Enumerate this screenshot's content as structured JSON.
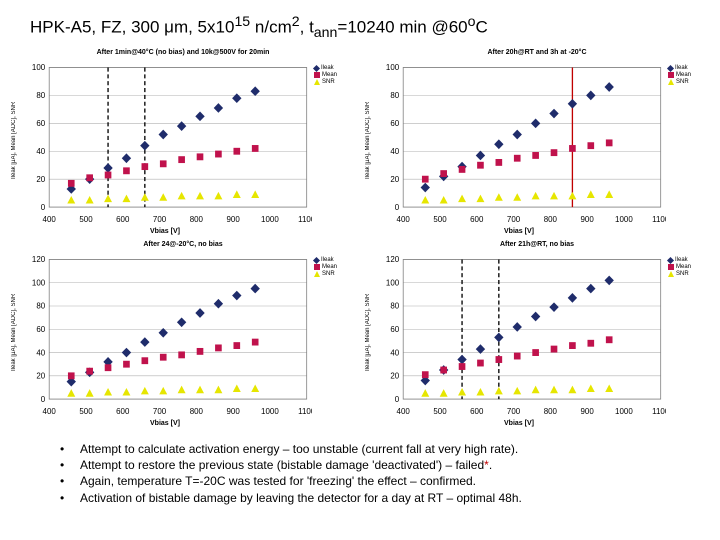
{
  "title_parts": {
    "p1": "HPK-A5, FZ, 300 μm, 5x10",
    "sup1": "15",
    "p2": " n/cm",
    "sup2": "2",
    "p3": ", t",
    "sub1": "ann",
    "p4": "=10240 min @60",
    "sup3": "o",
    "p5": "C"
  },
  "charts": [
    {
      "title": "After 1min@40°C (no bias) and 10k@500V for 20min",
      "xlabel": "Vbias [V]",
      "ylabel": "Ileak [μA], Mean [ADC], SNR",
      "xlim": [
        400,
        1100
      ],
      "xtick_step": 100,
      "ylim": [
        0,
        100
      ],
      "ytick_step": 20,
      "series": [
        {
          "name": "Ileak",
          "color": "#1f2c6b",
          "shape": "diamond",
          "pts": [
            [
              460,
              13
            ],
            [
              510,
              20
            ],
            [
              560,
              28
            ],
            [
              610,
              35
            ],
            [
              660,
              44
            ],
            [
              710,
              52
            ],
            [
              760,
              58
            ],
            [
              810,
              65
            ],
            [
              860,
              71
            ],
            [
              910,
              78
            ],
            [
              960,
              83
            ]
          ]
        },
        {
          "name": "Mean",
          "color": "#c0124c",
          "shape": "square",
          "pts": [
            [
              460,
              17
            ],
            [
              510,
              21
            ],
            [
              560,
              23
            ],
            [
              610,
              26
            ],
            [
              660,
              29
            ],
            [
              710,
              31
            ],
            [
              760,
              34
            ],
            [
              810,
              36
            ],
            [
              860,
              38
            ],
            [
              910,
              40
            ],
            [
              960,
              42
            ]
          ]
        },
        {
          "name": "SNR",
          "color": "#e6e600",
          "shape": "triangle",
          "pts": [
            [
              460,
              5
            ],
            [
              510,
              5
            ],
            [
              560,
              6
            ],
            [
              610,
              6
            ],
            [
              660,
              7
            ],
            [
              710,
              7
            ],
            [
              760,
              8
            ],
            [
              810,
              8
            ],
            [
              860,
              8
            ],
            [
              910,
              9
            ],
            [
              960,
              9
            ]
          ]
        }
      ],
      "vlines": [
        {
          "x": 560,
          "color": "#000"
        },
        {
          "x": 660,
          "color": "#000"
        }
      ]
    },
    {
      "title": "After 20h@RT and 3h at -20°C",
      "xlabel": "Vbias [V]",
      "ylabel": "Ileak [μA], Mean [ADC], SNR",
      "xlim": [
        400,
        1100
      ],
      "xtick_step": 100,
      "ylim": [
        0,
        100
      ],
      "ytick_step": 20,
      "series": [
        {
          "name": "Ileak",
          "color": "#1f2c6b",
          "shape": "diamond",
          "pts": [
            [
              460,
              14
            ],
            [
              510,
              22
            ],
            [
              560,
              29
            ],
            [
              610,
              37
            ],
            [
              660,
              45
            ],
            [
              710,
              52
            ],
            [
              760,
              60
            ],
            [
              810,
              67
            ],
            [
              860,
              74
            ],
            [
              910,
              80
            ],
            [
              960,
              86
            ]
          ]
        },
        {
          "name": "Mean",
          "color": "#c0124c",
          "shape": "square",
          "pts": [
            [
              460,
              20
            ],
            [
              510,
              24
            ],
            [
              560,
              27
            ],
            [
              610,
              30
            ],
            [
              660,
              32
            ],
            [
              710,
              35
            ],
            [
              760,
              37
            ],
            [
              810,
              39
            ],
            [
              860,
              42
            ],
            [
              910,
              44
            ],
            [
              960,
              46
            ]
          ]
        },
        {
          "name": "SNR",
          "color": "#e6e600",
          "shape": "triangle",
          "pts": [
            [
              460,
              5
            ],
            [
              510,
              5
            ],
            [
              560,
              6
            ],
            [
              610,
              6
            ],
            [
              660,
              7
            ],
            [
              710,
              7
            ],
            [
              760,
              8
            ],
            [
              810,
              8
            ],
            [
              860,
              8
            ],
            [
              910,
              9
            ],
            [
              960,
              9
            ]
          ]
        }
      ],
      "vlines": [
        {
          "x": 860,
          "color": "#c00000"
        }
      ]
    },
    {
      "title": "After 24@-20°C, no bias",
      "xlabel": "Vbias [V]",
      "ylabel": "Ileak [μA], Mean [ADC], SNR",
      "xlim": [
        400,
        1100
      ],
      "xtick_step": 100,
      "ylim": [
        0,
        120
      ],
      "ytick_step": 20,
      "series": [
        {
          "name": "Ileak",
          "color": "#1f2c6b",
          "shape": "diamond",
          "pts": [
            [
              460,
              15
            ],
            [
              510,
              23
            ],
            [
              560,
              32
            ],
            [
              610,
              40
            ],
            [
              660,
              49
            ],
            [
              710,
              57
            ],
            [
              760,
              66
            ],
            [
              810,
              74
            ],
            [
              860,
              82
            ],
            [
              910,
              89
            ],
            [
              960,
              95
            ]
          ]
        },
        {
          "name": "Mean",
          "color": "#c0124c",
          "shape": "square",
          "pts": [
            [
              460,
              20
            ],
            [
              510,
              24
            ],
            [
              560,
              27
            ],
            [
              610,
              30
            ],
            [
              660,
              33
            ],
            [
              710,
              36
            ],
            [
              760,
              38
            ],
            [
              810,
              41
            ],
            [
              860,
              44
            ],
            [
              910,
              46
            ],
            [
              960,
              49
            ]
          ]
        },
        {
          "name": "SNR",
          "color": "#e6e600",
          "shape": "triangle",
          "pts": [
            [
              460,
              5
            ],
            [
              510,
              5
            ],
            [
              560,
              6
            ],
            [
              610,
              6
            ],
            [
              660,
              7
            ],
            [
              710,
              7
            ],
            [
              760,
              8
            ],
            [
              810,
              8
            ],
            [
              860,
              8
            ],
            [
              910,
              9
            ],
            [
              960,
              9
            ]
          ]
        }
      ],
      "vlines": []
    },
    {
      "title": "After 21h@RT, no bias",
      "xlabel": "Vbias [V]",
      "ylabel": "Ileak [μA], Mean [ADC], SNR",
      "xlim": [
        400,
        1100
      ],
      "xtick_step": 100,
      "ylim": [
        0,
        120
      ],
      "ytick_step": 20,
      "series": [
        {
          "name": "Ileak",
          "color": "#1f2c6b",
          "shape": "diamond",
          "pts": [
            [
              460,
              16
            ],
            [
              510,
              25
            ],
            [
              560,
              34
            ],
            [
              610,
              43
            ],
            [
              660,
              53
            ],
            [
              710,
              62
            ],
            [
              760,
              71
            ],
            [
              810,
              79
            ],
            [
              860,
              87
            ],
            [
              910,
              95
            ],
            [
              960,
              102
            ]
          ]
        },
        {
          "name": "Mean",
          "color": "#c0124c",
          "shape": "square",
          "pts": [
            [
              460,
              21
            ],
            [
              510,
              25
            ],
            [
              560,
              28
            ],
            [
              610,
              31
            ],
            [
              660,
              34
            ],
            [
              710,
              37
            ],
            [
              760,
              40
            ],
            [
              810,
              43
            ],
            [
              860,
              46
            ],
            [
              910,
              48
            ],
            [
              960,
              51
            ]
          ]
        },
        {
          "name": "SNR",
          "color": "#e6e600",
          "shape": "triangle",
          "pts": [
            [
              460,
              5
            ],
            [
              510,
              5
            ],
            [
              560,
              6
            ],
            [
              610,
              6
            ],
            [
              660,
              7
            ],
            [
              710,
              7
            ],
            [
              760,
              8
            ],
            [
              810,
              8
            ],
            [
              860,
              8
            ],
            [
              910,
              9
            ],
            [
              960,
              9
            ]
          ]
        }
      ],
      "vlines": [
        {
          "x": 560,
          "color": "#000"
        },
        {
          "x": 660,
          "color": "#000"
        }
      ]
    }
  ],
  "grid_color": "#b0b0b0",
  "axis_color": "#808080",
  "tick_font_size": 6,
  "bullets": [
    {
      "text": "Attempt to calculate activation energy – too unstable (current fall at very high rate)."
    },
    {
      "text": "Attempt to restore the previous state (bistable damage 'deactivated') – failed",
      "suffix_red": "*",
      "after": "."
    },
    {
      "text": "Again, temperature T=-20C was tested for 'freezing' the effect – confirmed."
    },
    {
      "text": "Activation of bistable damage by leaving the detector for a day at RT – optimal 48h."
    }
  ]
}
